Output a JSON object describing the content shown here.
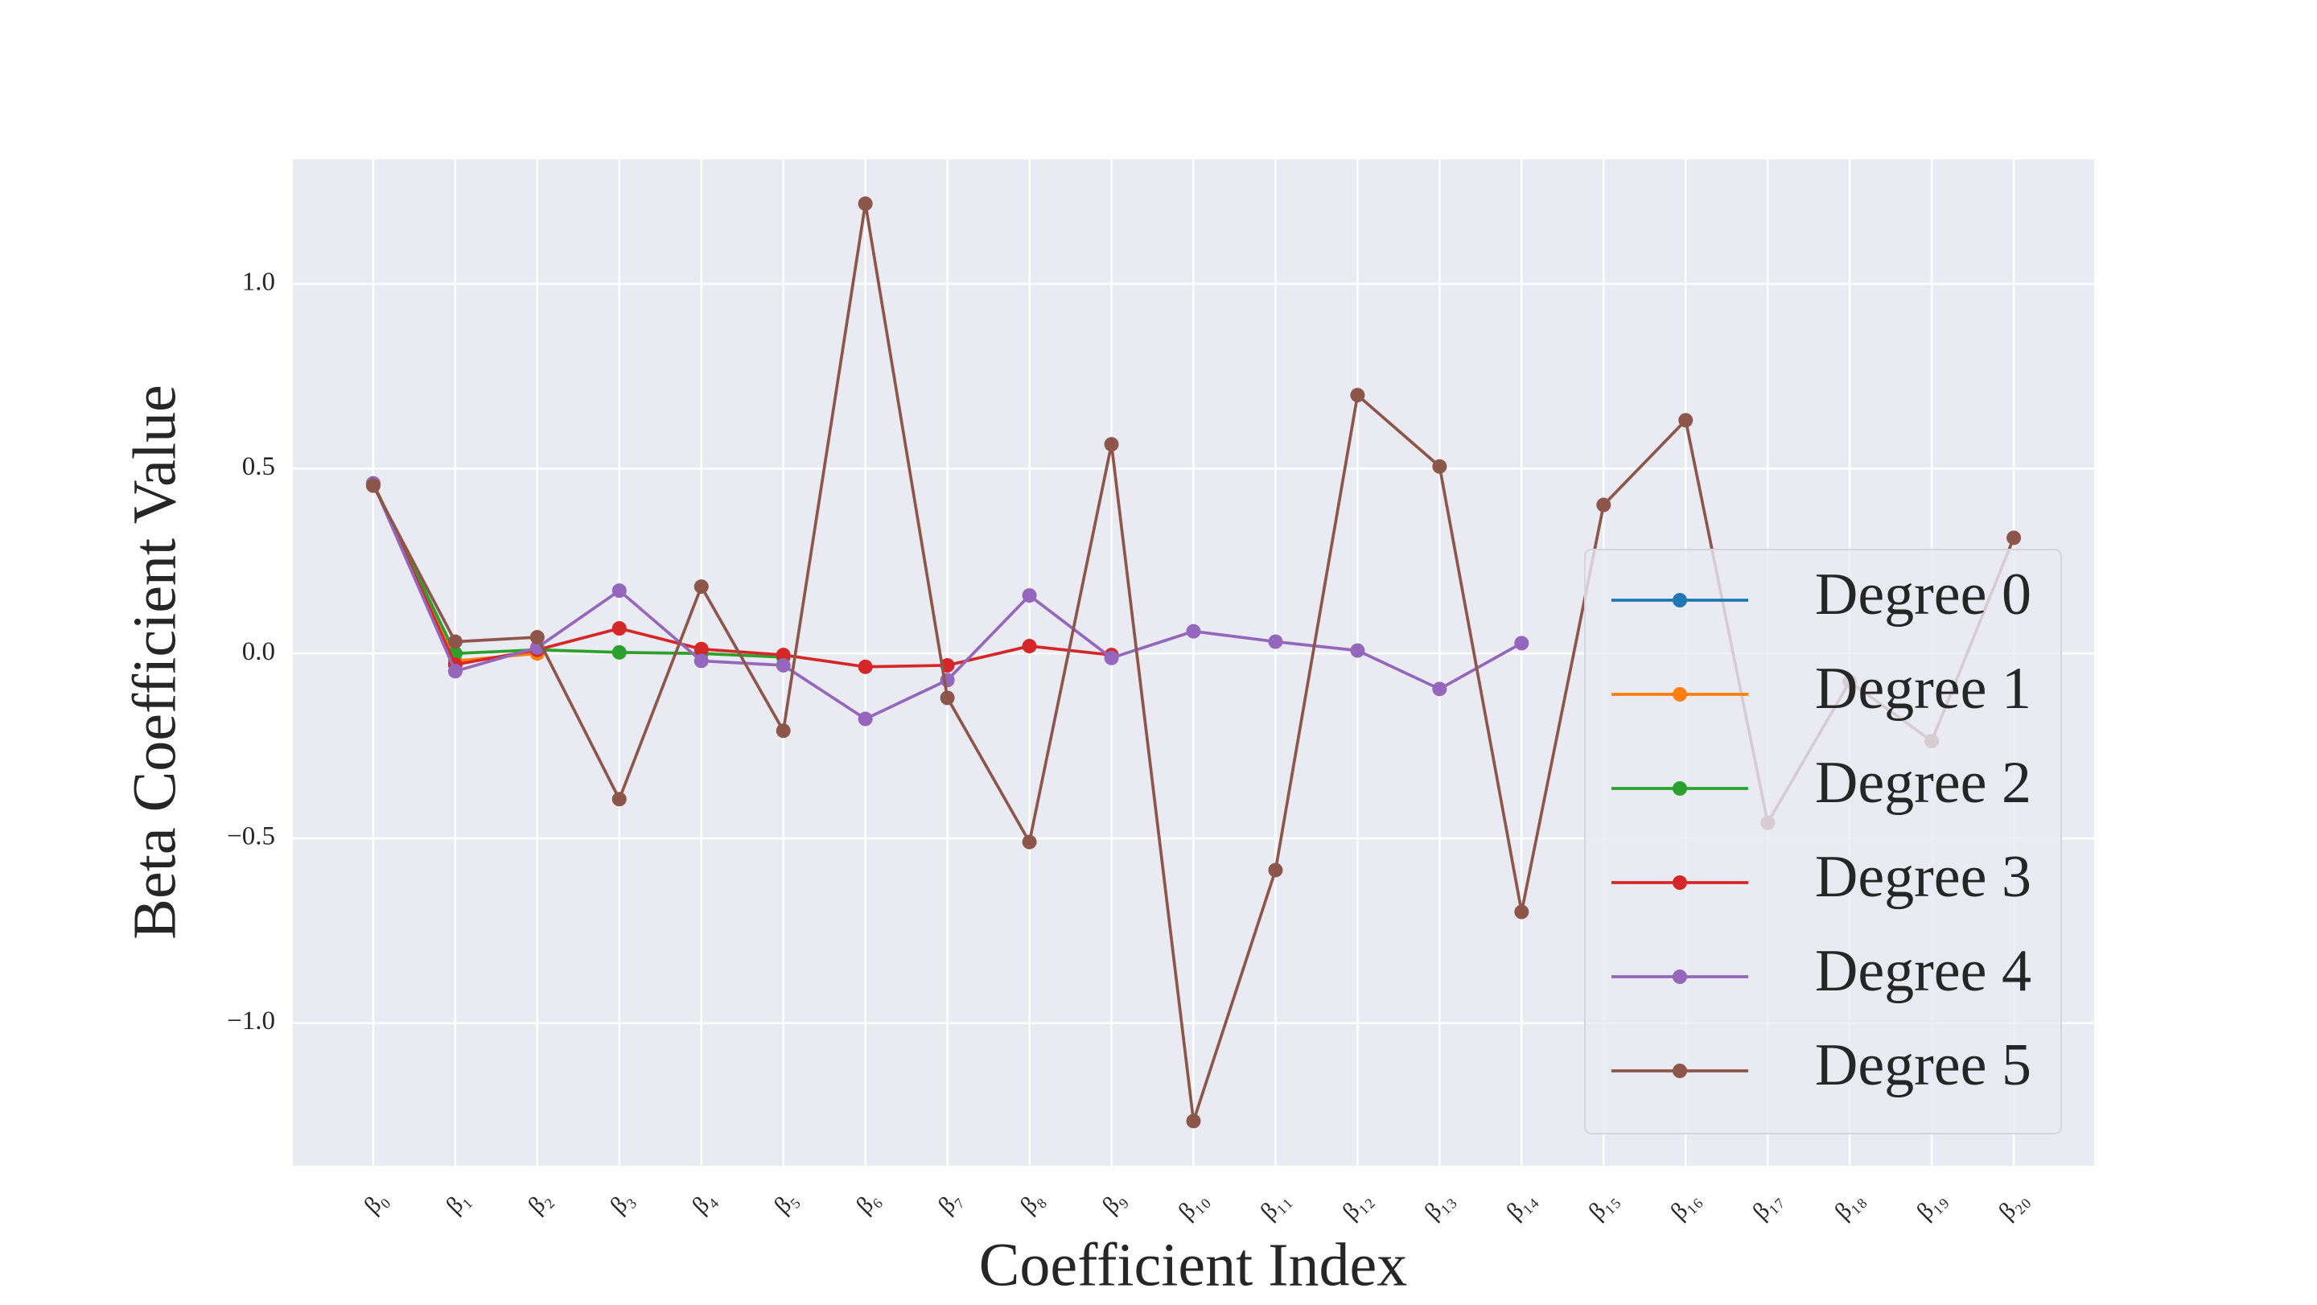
{
  "chart_data": {
    "type": "line",
    "xlabel": "Coefficient Index",
    "ylabel": "Beta Coefficient Value",
    "categories": [
      "β₀",
      "β₁",
      "β₂",
      "β₃",
      "β₄",
      "β₅",
      "β₆",
      "β₇",
      "β₈",
      "β₉",
      "β₁₀",
      "β₁₁",
      "β₁₂",
      "β₁₃",
      "β₁₄",
      "β₁₅",
      "β₁₆",
      "β₁₇",
      "β₁₈",
      "β₁₉",
      "β₂₀"
    ],
    "series": [
      {
        "name": "Degree 0",
        "color": "#1f77b4",
        "values": [
          0.46,
          null,
          null,
          null,
          null,
          null,
          null,
          null,
          null,
          null,
          null,
          null,
          null,
          null,
          null,
          null,
          null,
          null,
          null,
          null,
          null
        ]
      },
      {
        "name": "Degree 1",
        "color": "#ff7f0e",
        "values": [
          0.46,
          -0.02,
          0.0,
          null,
          null,
          null,
          null,
          null,
          null,
          null,
          null,
          null,
          null,
          null,
          null,
          null,
          null,
          null,
          null,
          null,
          null
        ]
      },
      {
        "name": "Degree 2",
        "color": "#2ca02c",
        "values": [
          0.46,
          0.0,
          0.01,
          0.003,
          0.0,
          -0.01,
          null,
          null,
          null,
          null,
          null,
          null,
          null,
          null,
          null,
          null,
          null,
          null,
          null,
          null,
          null
        ]
      },
      {
        "name": "Degree 3",
        "color": "#d62728",
        "values": [
          0.46,
          -0.03,
          0.01,
          0.068,
          0.012,
          -0.004,
          -0.036,
          -0.032,
          0.02,
          -0.004,
          null,
          null,
          null,
          null,
          null,
          null,
          null,
          null,
          null,
          null,
          null
        ]
      },
      {
        "name": "Degree 4",
        "color": "#9467bd",
        "values": [
          0.46,
          -0.048,
          0.016,
          0.17,
          -0.02,
          -0.032,
          -0.177,
          -0.072,
          0.157,
          -0.012,
          0.06,
          0.032,
          0.008,
          -0.096,
          0.028,
          null,
          null,
          null,
          null,
          null,
          null
        ]
      },
      {
        "name": "Degree 5",
        "color": "#8c564b",
        "values": [
          0.454,
          0.032,
          0.044,
          -0.394,
          0.181,
          -0.209,
          1.217,
          -0.12,
          -0.51,
          0.566,
          -1.265,
          -0.586,
          0.699,
          0.506,
          -0.699,
          0.402,
          0.631,
          -0.458,
          -0.076,
          -0.237,
          0.313
        ]
      }
    ],
    "ylim": [
      -1.386,
      1.337
    ],
    "yticks": [
      {
        "value": -1.0,
        "label": "−1.0"
      },
      {
        "value": -0.5,
        "label": "−0.5"
      },
      {
        "value": 0.0,
        "label": "0.0"
      },
      0.5,
      {
        "value": 1.0,
        "label": "1.0"
      }
    ],
    "grid": true,
    "legend": "lower right"
  }
}
